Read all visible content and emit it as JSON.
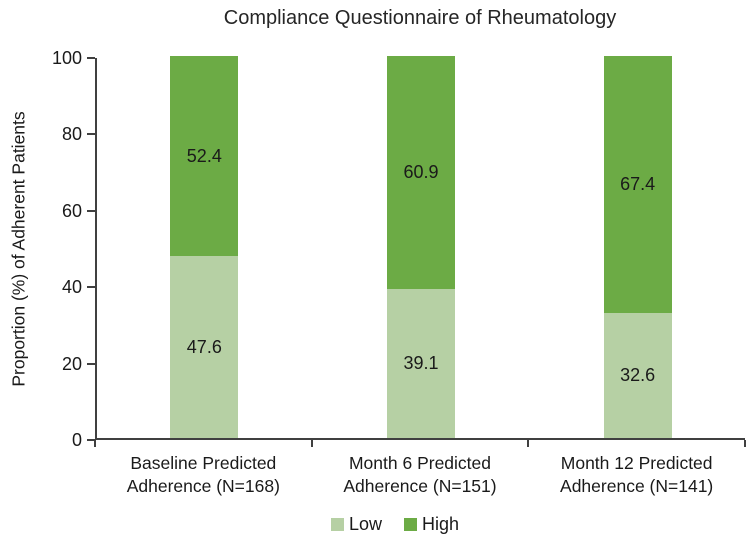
{
  "chart_data": {
    "type": "bar",
    "stacked": true,
    "title": "Compliance Questionnaire of Rheumatology",
    "ylabel": "Proportion (%) of Adherent Patients",
    "xlabel": "",
    "ylim": [
      0,
      100
    ],
    "yticks": [
      0,
      20,
      40,
      60,
      80,
      100
    ],
    "categories": [
      "Baseline Predicted\nAdherence (N=168)",
      "Month 6 Predicted\nAdherence (N=151)",
      "Month 12 Predicted\nAdherence (N=141)"
    ],
    "series": [
      {
        "name": "Low",
        "color": "#b6d0a4",
        "values": [
          47.6,
          39.1,
          32.6
        ]
      },
      {
        "name": "High",
        "color": "#6cab45",
        "values": [
          52.4,
          60.9,
          67.4
        ]
      }
    ],
    "value_labels": true,
    "legend_position": "bottom",
    "grid": false,
    "axis_color": "#404040",
    "text_color": "#1a1a1a"
  }
}
